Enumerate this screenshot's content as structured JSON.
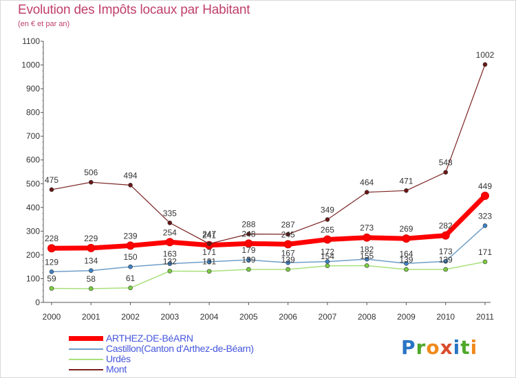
{
  "title": "Evolution des Impôts locaux par Habitant",
  "subtitle": "(en € et par an)",
  "brand": {
    "letters": [
      "P",
      "r",
      "o",
      "x",
      "i",
      "t",
      "i"
    ],
    "colors": [
      "#2a74c4",
      "#4ea82a",
      "#f08a1c",
      "#d94c2c",
      "#2a74c4",
      "#4ea82a",
      "#f08a1c"
    ]
  },
  "chart_data": {
    "type": "line",
    "title": "Evolution des Impôts locaux par Habitant",
    "subtitle": "(en € et par an)",
    "xlabel": "",
    "ylabel": "",
    "ylim": [
      0,
      1100
    ],
    "yticks": [
      0,
      100,
      200,
      300,
      400,
      500,
      600,
      700,
      800,
      900,
      1000,
      1100
    ],
    "grid": false,
    "legend": "bottom",
    "x": [
      "2000",
      "2001",
      "2002",
      "2003",
      "2004",
      "2005",
      "2006",
      "2007",
      "2008",
      "2009",
      "2010",
      "2011"
    ],
    "series": [
      {
        "name": "ARTHEZ-DE-BéARN",
        "color": "#ff0000",
        "marker": "#dd0000",
        "width": 7,
        "values": [
          228,
          229,
          239,
          254,
          241,
          248,
          245,
          265,
          273,
          269,
          282,
          449
        ]
      },
      {
        "name": "Castillon(Canton d'Arthez-de-Béarn)",
        "color": "#6f9ec8",
        "marker": "#3d82c4",
        "width": 1.5,
        "values": [
          129,
          134,
          150,
          163,
          171,
          179,
          167,
          172,
          182,
          164,
          173,
          323
        ]
      },
      {
        "name": "Urdès",
        "color": "#a8e07a",
        "marker": "#7ccf40",
        "width": 1.5,
        "values": [
          59,
          58,
          61,
          132,
          131,
          139,
          139,
          154,
          155,
          139,
          139,
          171
        ]
      },
      {
        "name": "Mont",
        "color": "#7a2020",
        "marker": "#6a1616",
        "width": 1.2,
        "values": [
          475,
          506,
          494,
          335,
          247,
          288,
          287,
          349,
          464,
          471,
          548,
          1002
        ]
      }
    ]
  }
}
